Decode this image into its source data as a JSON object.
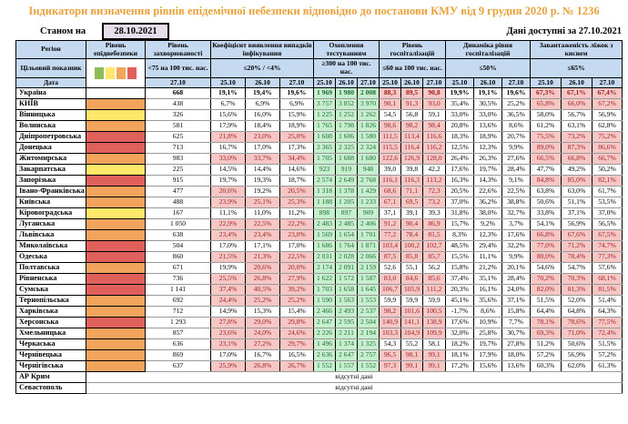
{
  "title": "Індикатори визначення рівнів епідемічної небезпеки відповідно до постанови КМУ від 9 грудня 2020 р. № 1236",
  "as_of_label": "Станом на",
  "as_of_date": "28.10.2021",
  "data_available_label": "Дані доступні за 27.10.2021",
  "no_data_text": "відсутні дані",
  "colors": {
    "title_orange": "#E9A23C",
    "header_blue": "#C5D9F1",
    "date_box_lavender": "#E6DEEC",
    "danger_green": "#8FBC5A",
    "danger_yellow": "#FFE76A",
    "danger_orange": "#F2A45C",
    "danger_red": "#E0605C",
    "cell_green_bg": "#C6EFCE",
    "cell_green_text": "#1F6B35",
    "cell_red_bg": "#F7C7C6",
    "cell_red_text": "#9C2020"
  },
  "header": {
    "region": "Регіон",
    "target_label": "Цільовий показник",
    "date_label": "Дата",
    "groups": [
      {
        "label": "Рівень епіднебезпеки",
        "target": "",
        "dates": []
      },
      {
        "label": "Рівень захворюваності",
        "target": "<75 на 100 тис. нас.",
        "dates": [
          "27.10"
        ]
      },
      {
        "label": "Коефіцієнт виявлення випадків інфікування",
        "target": "≤20% / <4%",
        "dates": [
          "25.10",
          "26.10",
          "27.10"
        ]
      },
      {
        "label": "Охоплення тестуванням",
        "target": "≥300 на 100 тис. нас.",
        "dates": [
          "25.10",
          "26.10",
          "27.10"
        ]
      },
      {
        "label": "Рівень госпіталізацій",
        "target": "≤60 на 100 тис. нас.",
        "dates": [
          "25.10",
          "26.10",
          "27.10"
        ]
      },
      {
        "label": "Динаміка рівня госпіталізацій",
        "target": "≤50%",
        "dates": [
          "25.10",
          "26.10",
          "27.10"
        ]
      },
      {
        "label": "Завантаженість ліжок з киснем",
        "target": "≤65%",
        "dates": [
          "25.10",
          "26.10",
          "27.10"
        ]
      }
    ]
  },
  "rows": [
    {
      "region": "Україна",
      "bold": true,
      "danger": "none",
      "inc": "668",
      "det": [
        "19,1%",
        "19,4%",
        "19,6%"
      ],
      "detf": [
        0,
        0,
        0
      ],
      "test": [
        "1 969",
        "1 980",
        "2 008"
      ],
      "hosp": [
        "88,3",
        "89,5",
        "90,8"
      ],
      "hospf": [
        1,
        1,
        1
      ],
      "dyn": [
        "19,9%",
        "19,1%",
        "19,6%"
      ],
      "beds": [
        "67,3%",
        "67,1%",
        "67,4%"
      ],
      "bedsf": [
        1,
        1,
        1
      ]
    },
    {
      "region": "КИЇВ",
      "danger": "orange",
      "inc": "438",
      "det": [
        "6,7%",
        "6,9%",
        "6,9%"
      ],
      "detf": [
        0,
        0,
        0
      ],
      "test": [
        "3 757",
        "3 852",
        "3 970"
      ],
      "hosp": [
        "90,1",
        "91,3",
        "93,0"
      ],
      "hospf": [
        1,
        1,
        1
      ],
      "dyn": [
        "35,4%",
        "30,5%",
        "25,2%"
      ],
      "beds": [
        "65,8%",
        "66,0%",
        "67,2%"
      ],
      "bedsf": [
        1,
        1,
        1
      ]
    },
    {
      "region": "Вінницька",
      "danger": "yellow",
      "inc": "326",
      "det": [
        "15,6%",
        "16,0%",
        "15,9%"
      ],
      "detf": [
        0,
        0,
        0
      ],
      "test": [
        "1 225",
        "1 252",
        "1 262"
      ],
      "hosp": [
        "54,5",
        "56,8",
        "59,1"
      ],
      "hospf": [
        0,
        0,
        0
      ],
      "dyn": [
        "33,0%",
        "33,0%",
        "36,5%"
      ],
      "beds": [
        "58,0%",
        "56,7%",
        "56,9%"
      ],
      "bedsf": [
        0,
        0,
        0
      ]
    },
    {
      "region": "Волинська",
      "danger": "orange",
      "inc": "581",
      "det": [
        "17,9%",
        "18,4%",
        "18,9%"
      ],
      "detf": [
        0,
        0,
        0
      ],
      "test": [
        "1 765",
        "1 798",
        "1 826"
      ],
      "hosp": [
        "98,6",
        "98,2",
        "98,4"
      ],
      "hospf": [
        1,
        1,
        1
      ],
      "dyn": [
        "20,8%",
        "13,6%",
        "8,6%"
      ],
      "beds": [
        "61,2%",
        "63,1%",
        "62,8%"
      ],
      "bedsf": [
        0,
        0,
        0
      ]
    },
    {
      "region": "Дніпропетровська",
      "danger": "red",
      "inc": "625",
      "det": [
        "21,8%",
        "23,0%",
        "25,0%"
      ],
      "detf": [
        1,
        1,
        1
      ],
      "test": [
        "1 608",
        "1 606",
        "1 580"
      ],
      "hosp": [
        "111,5",
        "113,4",
        "116,6"
      ],
      "hospf": [
        1,
        1,
        1
      ],
      "dyn": [
        "18,3%",
        "18,9%",
        "20,7%"
      ],
      "beds": [
        "75,5%",
        "73,2%",
        "75,2%"
      ],
      "bedsf": [
        1,
        1,
        1
      ]
    },
    {
      "region": "Донецька",
      "danger": "red",
      "inc": "713",
      "det": [
        "16,7%",
        "17,0%",
        "17,3%"
      ],
      "detf": [
        0,
        0,
        0
      ],
      "test": [
        "2 365",
        "2 325",
        "2 324"
      ],
      "hosp": [
        "115,5",
        "116,4",
        "116,2"
      ],
      "hospf": [
        1,
        1,
        1
      ],
      "dyn": [
        "12,5%",
        "12,3%",
        "9,9%"
      ],
      "beds": [
        "89,0%",
        "87,3%",
        "86,6%"
      ],
      "bedsf": [
        1,
        1,
        1
      ]
    },
    {
      "region": "Житомирська",
      "danger": "orange",
      "inc": "983",
      "det": [
        "33,0%",
        "33,7%",
        "34,4%"
      ],
      "detf": [
        1,
        1,
        1
      ],
      "test": [
        "1 705",
        "1 688",
        "1 680"
      ],
      "hosp": [
        "122,6",
        "126,9",
        "128,0"
      ],
      "hospf": [
        1,
        1,
        1
      ],
      "dyn": [
        "26,4%",
        "26,3%",
        "27,6%"
      ],
      "beds": [
        "66,5%",
        "66,8%",
        "66,7%"
      ],
      "bedsf": [
        1,
        1,
        1
      ]
    },
    {
      "region": "Закарпатська",
      "danger": "yellow",
      "inc": "225",
      "det": [
        "14,5%",
        "14,4%",
        "14,6%"
      ],
      "detf": [
        0,
        0,
        0
      ],
      "test": [
        "923",
        "919",
        "948"
      ],
      "hosp": [
        "39,0",
        "39,8",
        "42,2"
      ],
      "hospf": [
        0,
        0,
        0
      ],
      "dyn": [
        "17,6%",
        "19,7%",
        "28,4%"
      ],
      "beds": [
        "47,7%",
        "49,2%",
        "50,2%"
      ],
      "bedsf": [
        0,
        0,
        0
      ]
    },
    {
      "region": "Запорізька",
      "danger": "red",
      "inc": "915",
      "det": [
        "19,7%",
        "19,3%",
        "18,7%"
      ],
      "detf": [
        0,
        0,
        0
      ],
      "test": [
        "2 574",
        "2 649",
        "2 768"
      ],
      "hosp": [
        "116,1",
        "116,3",
        "113,2"
      ],
      "hospf": [
        1,
        1,
        1
      ],
      "dyn": [
        "16,3%",
        "14,3%",
        "9,1%"
      ],
      "beds": [
        "84,8%",
        "85,0%",
        "82,1%"
      ],
      "bedsf": [
        1,
        1,
        1
      ]
    },
    {
      "region": "Івано-Франківська",
      "danger": "orange",
      "inc": "477",
      "det": [
        "20,6%",
        "19,2%",
        "20,5%"
      ],
      "detf": [
        1,
        0,
        1
      ],
      "test": [
        "1 318",
        "1 378",
        "1 429"
      ],
      "hosp": [
        "68,6",
        "71,1",
        "72,3"
      ],
      "hospf": [
        1,
        1,
        1
      ],
      "dyn": [
        "20,5%",
        "22,6%",
        "22,5%"
      ],
      "beds": [
        "63,8%",
        "63,0%",
        "61,7%"
      ],
      "bedsf": [
        0,
        0,
        0
      ]
    },
    {
      "region": "Київська",
      "danger": "orange",
      "inc": "488",
      "det": [
        "23,9%",
        "25,1%",
        "25,3%"
      ],
      "detf": [
        1,
        1,
        1
      ],
      "test": [
        "1 188",
        "1 205",
        "1 233"
      ],
      "hosp": [
        "67,1",
        "69,5",
        "73,2"
      ],
      "hospf": [
        1,
        1,
        1
      ],
      "dyn": [
        "37,0%",
        "36,2%",
        "38,8%"
      ],
      "beds": [
        "50,6%",
        "51,1%",
        "53,5%"
      ],
      "bedsf": [
        0,
        0,
        0
      ]
    },
    {
      "region": "Кіровоградська",
      "danger": "yellow",
      "inc": "167",
      "det": [
        "11,1%",
        "11,0%",
        "11,2%"
      ],
      "detf": [
        0,
        0,
        0
      ],
      "test": [
        "898",
        "897",
        "909"
      ],
      "hosp": [
        "37,1",
        "39,1",
        "39,3"
      ],
      "hospf": [
        0,
        0,
        0
      ],
      "dyn": [
        "31,8%",
        "38,0%",
        "32,7%"
      ],
      "beds": [
        "33,8%",
        "37,1%",
        "37,0%"
      ],
      "bedsf": [
        0,
        0,
        0
      ]
    },
    {
      "region": "Луганська",
      "danger": "orange",
      "inc": "1 050",
      "det": [
        "22,9%",
        "22,5%",
        "22,2%"
      ],
      "detf": [
        1,
        1,
        1
      ],
      "test": [
        "2 483",
        "2 485",
        "2 406"
      ],
      "hosp": [
        "91,2",
        "90,4",
        "86,9"
      ],
      "hospf": [
        1,
        1,
        1
      ],
      "dyn": [
        "15,7%",
        "9,2%",
        "3,7%"
      ],
      "beds": [
        "54,1%",
        "56,9%",
        "56,5%"
      ],
      "bedsf": [
        0,
        0,
        0
      ]
    },
    {
      "region": "Львівська",
      "danger": "orange",
      "inc": "638",
      "det": [
        "23,4%",
        "23,4%",
        "23,0%"
      ],
      "detf": [
        1,
        1,
        1
      ],
      "test": [
        "1 569",
        "1 654",
        "1 701"
      ],
      "hosp": [
        "77,2",
        "78,4",
        "81,5"
      ],
      "hospf": [
        1,
        1,
        1
      ],
      "dyn": [
        "8,3%",
        "12,3%",
        "17,6%"
      ],
      "beds": [
        "66,8%",
        "67,6%",
        "67,5%"
      ],
      "bedsf": [
        1,
        1,
        1
      ]
    },
    {
      "region": "Миколаївська",
      "danger": "red",
      "inc": "504",
      "det": [
        "17,0%",
        "17,1%",
        "17,0%"
      ],
      "detf": [
        0,
        0,
        0
      ],
      "test": [
        "1 686",
        "1 764",
        "1 871"
      ],
      "hosp": [
        "103,4",
        "100,2",
        "102,7"
      ],
      "hospf": [
        1,
        1,
        1
      ],
      "dyn": [
        "48,5%",
        "29,4%",
        "32,2%"
      ],
      "beds": [
        "77,0%",
        "71,2%",
        "74,7%"
      ],
      "bedsf": [
        1,
        1,
        1
      ]
    },
    {
      "region": "Одеська",
      "danger": "red",
      "inc": "860",
      "det": [
        "21,5%",
        "21,3%",
        "22,5%"
      ],
      "detf": [
        1,
        1,
        1
      ],
      "test": [
        "2 031",
        "2 028",
        "2 066"
      ],
      "hosp": [
        "87,5",
        "85,8",
        "85,7"
      ],
      "hospf": [
        1,
        1,
        1
      ],
      "dyn": [
        "15,5%",
        "11,1%",
        "9,9%"
      ],
      "beds": [
        "80,0%",
        "78,4%",
        "77,3%"
      ],
      "bedsf": [
        1,
        1,
        1
      ]
    },
    {
      "region": "Полтавська",
      "danger": "orange",
      "inc": "671",
      "det": [
        "19,9%",
        "20,6%",
        "20,0%"
      ],
      "detf": [
        0,
        1,
        1
      ],
      "test": [
        "2 174",
        "2 091",
        "2 159"
      ],
      "hosp": [
        "52,6",
        "55,1",
        "56,2"
      ],
      "hospf": [
        0,
        0,
        0
      ],
      "dyn": [
        "15,8%",
        "21,2%",
        "20,1%"
      ],
      "beds": [
        "54,6%",
        "54,7%",
        "57,6%"
      ],
      "bedsf": [
        0,
        0,
        0
      ]
    },
    {
      "region": "Рівненська",
      "danger": "red",
      "inc": "736",
      "det": [
        "25,5%",
        "26,8%",
        "27,9%"
      ],
      "detf": [
        1,
        1,
        1
      ],
      "test": [
        "1 622",
        "1 572",
        "1 587"
      ],
      "hosp": [
        "83,0",
        "84,6",
        "85,6"
      ],
      "hospf": [
        1,
        1,
        1
      ],
      "dyn": [
        "37,4%",
        "35,1%",
        "28,4%"
      ],
      "beds": [
        "70,2%",
        "70,3%",
        "68,1%"
      ],
      "bedsf": [
        1,
        1,
        1
      ]
    },
    {
      "region": "Сумська",
      "danger": "red",
      "inc": "1 141",
      "det": [
        "37,4%",
        "40,5%",
        "39,2%"
      ],
      "detf": [
        1,
        1,
        1
      ],
      "test": [
        "1 703",
        "1 658",
        "1 645"
      ],
      "hosp": [
        "106,7",
        "105,9",
        "111,2"
      ],
      "hospf": [
        1,
        1,
        1
      ],
      "dyn": [
        "20,3%",
        "16,1%",
        "24,0%"
      ],
      "beds": [
        "82,0%",
        "81,3%",
        "81,5%"
      ],
      "bedsf": [
        1,
        1,
        1
      ]
    },
    {
      "region": "Тернопільська",
      "danger": "orange",
      "inc": "692",
      "det": [
        "24,4%",
        "25,2%",
        "25,2%"
      ],
      "detf": [
        1,
        1,
        1
      ],
      "test": [
        "1 590",
        "1 563",
        "1 553"
      ],
      "hosp": [
        "59,9",
        "59,9",
        "59,9"
      ],
      "hospf": [
        0,
        0,
        0
      ],
      "dyn": [
        "45,1%",
        "35,6%",
        "37,1%"
      ],
      "beds": [
        "51,5%",
        "52,0%",
        "51,4%"
      ],
      "bedsf": [
        0,
        0,
        0
      ]
    },
    {
      "region": "Харківська",
      "danger": "orange",
      "inc": "712",
      "det": [
        "14,9%",
        "15,3%",
        "15,4%"
      ],
      "detf": [
        0,
        0,
        0
      ],
      "test": [
        "2 466",
        "2 493",
        "2 537"
      ],
      "hosp": [
        "98,2",
        "101,6",
        "100,5"
      ],
      "hospf": [
        1,
        1,
        1
      ],
      "dyn": [
        "-1,7%",
        "8,6%",
        "15,8%"
      ],
      "beds": [
        "64,4%",
        "64,8%",
        "64,3%"
      ],
      "bedsf": [
        0,
        0,
        0
      ]
    },
    {
      "region": "Херсонська",
      "danger": "red",
      "inc": "1 293",
      "det": [
        "27,8%",
        "29,0%",
        "29,8%"
      ],
      "detf": [
        1,
        1,
        1
      ],
      "test": [
        "2 647",
        "2 595",
        "2 504"
      ],
      "hosp": [
        "140,9",
        "141,1",
        "138,9"
      ],
      "hospf": [
        1,
        1,
        1
      ],
      "dyn": [
        "17,6%",
        "10,9%",
        "7,7%"
      ],
      "beds": [
        "78,1%",
        "78,6%",
        "77,5%"
      ],
      "bedsf": [
        1,
        1,
        1
      ]
    },
    {
      "region": "Хмельницька",
      "danger": "orange",
      "inc": "857",
      "det": [
        "23,6%",
        "24,0%",
        "24,6%"
      ],
      "detf": [
        1,
        1,
        1
      ],
      "test": [
        "2 226",
        "2 211",
        "2 194"
      ],
      "hosp": [
        "103,3",
        "104,9",
        "109,9"
      ],
      "hospf": [
        1,
        1,
        1
      ],
      "dyn": [
        "32,0%",
        "25,8%",
        "30,7%"
      ],
      "beds": [
        "69,3%",
        "71,0%",
        "72,4%"
      ],
      "bedsf": [
        1,
        1,
        1
      ]
    },
    {
      "region": "Черкаська",
      "danger": "orange",
      "inc": "636",
      "det": [
        "23,1%",
        "27,2%",
        "29,7%"
      ],
      "detf": [
        1,
        1,
        1
      ],
      "test": [
        "1 496",
        "1 374",
        "1 325"
      ],
      "hosp": [
        "54,3",
        "55,2",
        "58,1"
      ],
      "hospf": [
        0,
        0,
        0
      ],
      "dyn": [
        "18,2%",
        "19,7%",
        "27,8%"
      ],
      "beds": [
        "51,2%",
        "50,6%",
        "51,5%"
      ],
      "bedsf": [
        0,
        0,
        0
      ]
    },
    {
      "region": "Чернівецька",
      "danger": "orange",
      "inc": "869",
      "det": [
        "17,0%",
        "16,7%",
        "16,5%"
      ],
      "detf": [
        0,
        0,
        0
      ],
      "test": [
        "2 636",
        "2 647",
        "2 757"
      ],
      "hosp": [
        "96,5",
        "98,1",
        "99,1"
      ],
      "hospf": [
        1,
        1,
        1
      ],
      "dyn": [
        "18,1%",
        "17,9%",
        "18,0%"
      ],
      "beds": [
        "57,2%",
        "56,9%",
        "57,2%"
      ],
      "bedsf": [
        0,
        0,
        0
      ]
    },
    {
      "region": "Чернігівська",
      "danger": "orange",
      "inc": "637",
      "det": [
        "25,9%",
        "26,8%",
        "26,7%"
      ],
      "detf": [
        1,
        1,
        1
      ],
      "test": [
        "1 552",
        "1 557",
        "1 552"
      ],
      "hosp": [
        "97,3",
        "99,1",
        "99,1"
      ],
      "hospf": [
        1,
        1,
        1
      ],
      "dyn": [
        "17,2%",
        "15,6%",
        "13,6%"
      ],
      "beds": [
        "60,3%",
        "62,0%",
        "61,3%"
      ],
      "bedsf": [
        0,
        0,
        0
      ]
    },
    {
      "region": "АР Крим",
      "no_data": true
    },
    {
      "region": "Севастополь",
      "no_data": true
    }
  ]
}
